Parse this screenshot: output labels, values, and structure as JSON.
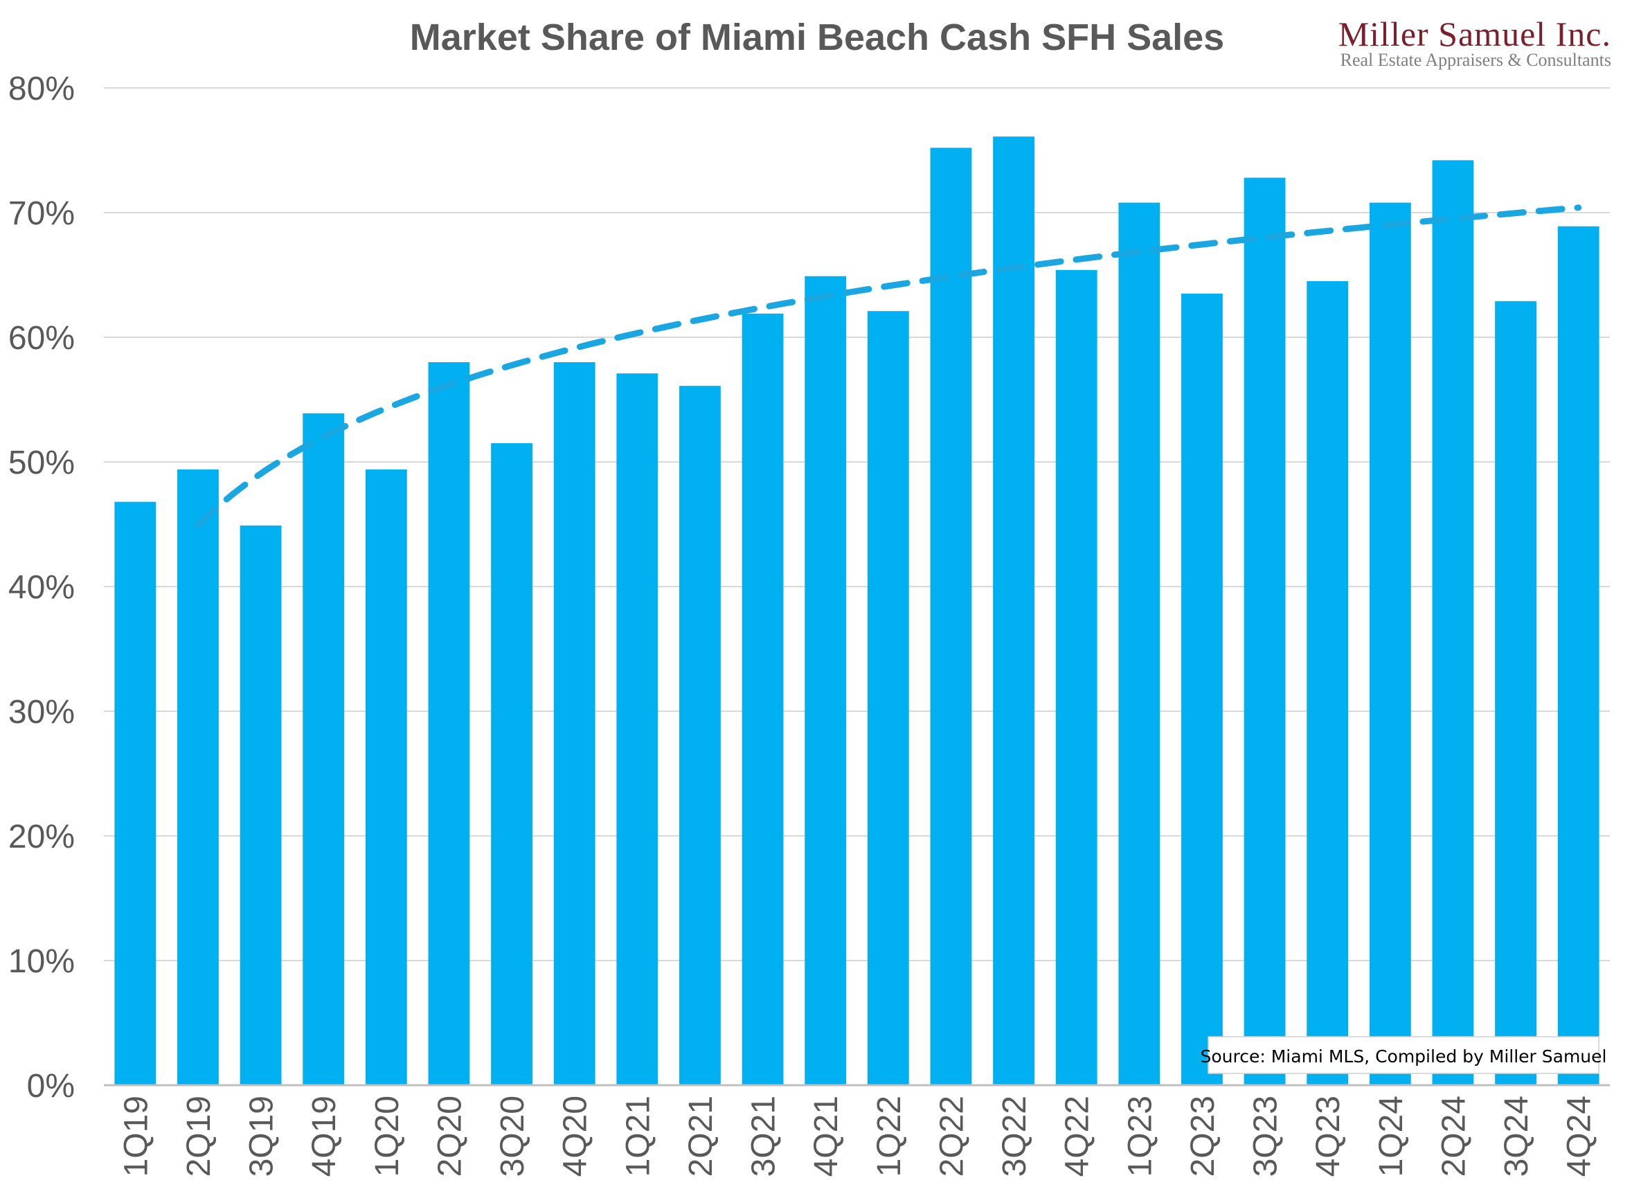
{
  "logo": {
    "name": "Miller Samuel Inc.",
    "tagline": "Real Estate Appraisers & Consultants"
  },
  "source_note": "Source: Miami MLS, Compiled by Miller Samuel",
  "colors": {
    "bar": "#00b0f0",
    "trendline": "#1aa6e0",
    "grid": "#d9d9d9",
    "axis_text": "#595959",
    "logo": "#7a1f2b"
  },
  "chart_data": {
    "type": "bar",
    "title": "Market Share of Miami Beach Cash SFH Sales",
    "xlabel": "",
    "ylabel": "",
    "ylim": [
      0,
      80
    ],
    "y_ticks": [
      "0%",
      "10%",
      "20%",
      "30%",
      "40%",
      "50%",
      "60%",
      "70%",
      "80%"
    ],
    "y_tick_values": [
      0,
      10,
      20,
      30,
      40,
      50,
      60,
      70,
      80
    ],
    "grid": true,
    "categories": [
      "1Q19",
      "2Q19",
      "3Q19",
      "4Q19",
      "1Q20",
      "2Q20",
      "3Q20",
      "4Q20",
      "1Q21",
      "2Q21",
      "3Q21",
      "4Q21",
      "1Q22",
      "2Q22",
      "3Q22",
      "4Q22",
      "1Q23",
      "2Q23",
      "3Q23",
      "4Q23",
      "1Q24",
      "2Q24",
      "3Q24",
      "4Q24"
    ],
    "values": [
      46.8,
      49.4,
      44.9,
      53.9,
      49.4,
      58.0,
      51.5,
      58.0,
      57.1,
      56.1,
      61.9,
      64.9,
      62.1,
      75.2,
      76.1,
      65.4,
      70.8,
      63.5,
      72.8,
      64.5,
      70.8,
      74.2,
      62.9,
      68.9
    ],
    "trendline": {
      "type": "logarithmic",
      "style": "dashed",
      "start_category": "2Q19",
      "end_category": "4Q24",
      "start_value": 44.9,
      "end_value": 70.4
    }
  }
}
